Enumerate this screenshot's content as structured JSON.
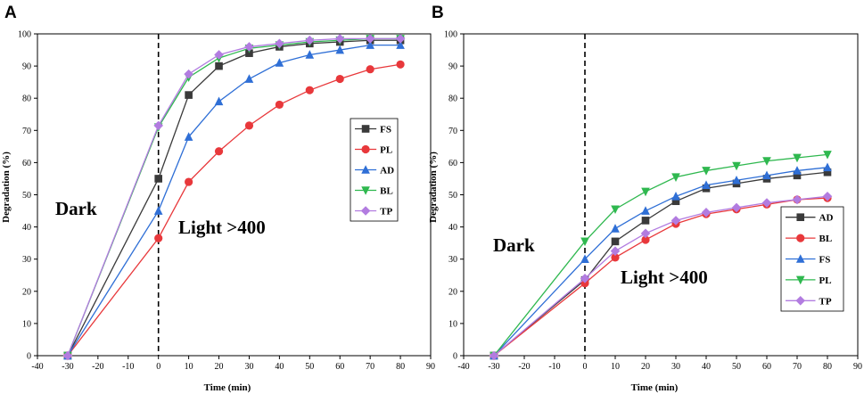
{
  "chart_data": [
    {
      "panel_label": "A",
      "type": "line",
      "xlabel": "Time (min)",
      "ylabel": "Degradation (%)",
      "xlim": [
        -40,
        90
      ],
      "ylim": [
        0,
        100
      ],
      "xticks": [
        -40,
        -30,
        -20,
        -10,
        0,
        10,
        20,
        30,
        40,
        50,
        60,
        70,
        80,
        90
      ],
      "yticks": [
        0,
        10,
        20,
        30,
        40,
        50,
        60,
        70,
        80,
        90,
        100
      ],
      "x": [
        -30,
        0,
        10,
        20,
        30,
        40,
        50,
        60,
        70,
        80
      ],
      "divider_x": 0,
      "annotations": {
        "dark": "Dark",
        "light": "Light >400"
      },
      "legend_position": "right-middle",
      "series": [
        {
          "name": "FS",
          "color": "#3a3a3a",
          "marker": "square",
          "values": [
            0,
            55,
            81,
            90,
            94,
            96,
            97,
            97.5,
            98,
            98
          ]
        },
        {
          "name": "PL",
          "color": "#e8383b",
          "marker": "circle",
          "values": [
            0,
            36.5,
            54,
            63.5,
            71.5,
            78,
            82.5,
            86,
            89,
            90.5
          ]
        },
        {
          "name": "AD",
          "color": "#2f6fd6",
          "marker": "triangle-up",
          "values": [
            0,
            45,
            68,
            79,
            86,
            91,
            93.5,
            95,
            96.5,
            96.5
          ]
        },
        {
          "name": "BL",
          "color": "#2fb84f",
          "marker": "triangle-down",
          "values": [
            0,
            71,
            86.5,
            92.5,
            95.5,
            96.5,
            97.5,
            98,
            98.5,
            98.5
          ]
        },
        {
          "name": "TP",
          "color": "#b27ce0",
          "marker": "diamond",
          "values": [
            0,
            71.5,
            87.5,
            93.5,
            96,
            97,
            98,
            98.5,
            98.5,
            98.5
          ]
        }
      ]
    },
    {
      "panel_label": "B",
      "type": "line",
      "xlabel": "Time (min)",
      "ylabel": "Degradation (%)",
      "xlim": [
        -40,
        90
      ],
      "ylim": [
        0,
        100
      ],
      "xticks": [
        -40,
        -30,
        -20,
        -10,
        0,
        10,
        20,
        30,
        40,
        50,
        60,
        70,
        80,
        90
      ],
      "yticks": [
        0,
        10,
        20,
        30,
        40,
        50,
        60,
        70,
        80,
        90,
        100
      ],
      "x": [
        -30,
        0,
        10,
        20,
        30,
        40,
        50,
        60,
        70,
        80
      ],
      "divider_x": 0,
      "annotations": {
        "dark": "Dark",
        "light": "Light >400"
      },
      "legend_position": "bottom-right",
      "series": [
        {
          "name": "AD",
          "color": "#3a3a3a",
          "marker": "square",
          "values": [
            0,
            23.5,
            35.5,
            42,
            48,
            52,
            53.5,
            55,
            56,
            57
          ]
        },
        {
          "name": "BL",
          "color": "#e8383b",
          "marker": "circle",
          "values": [
            0,
            22.5,
            30.5,
            36,
            41,
            44,
            45.5,
            47,
            48.5,
            49
          ]
        },
        {
          "name": "FS",
          "color": "#2f6fd6",
          "marker": "triangle-up",
          "values": [
            0,
            30,
            39.5,
            45,
            49.5,
            53,
            54.5,
            56,
            57.5,
            58.5
          ]
        },
        {
          "name": "PL",
          "color": "#2fb84f",
          "marker": "triangle-down",
          "values": [
            0,
            35.5,
            45.5,
            51,
            55.5,
            57.5,
            59,
            60.5,
            61.5,
            62.5
          ]
        },
        {
          "name": "TP",
          "color": "#b27ce0",
          "marker": "diamond",
          "values": [
            0,
            24,
            32.5,
            38,
            42,
            44.5,
            46,
            47.5,
            48.5,
            49.5
          ]
        }
      ]
    }
  ]
}
